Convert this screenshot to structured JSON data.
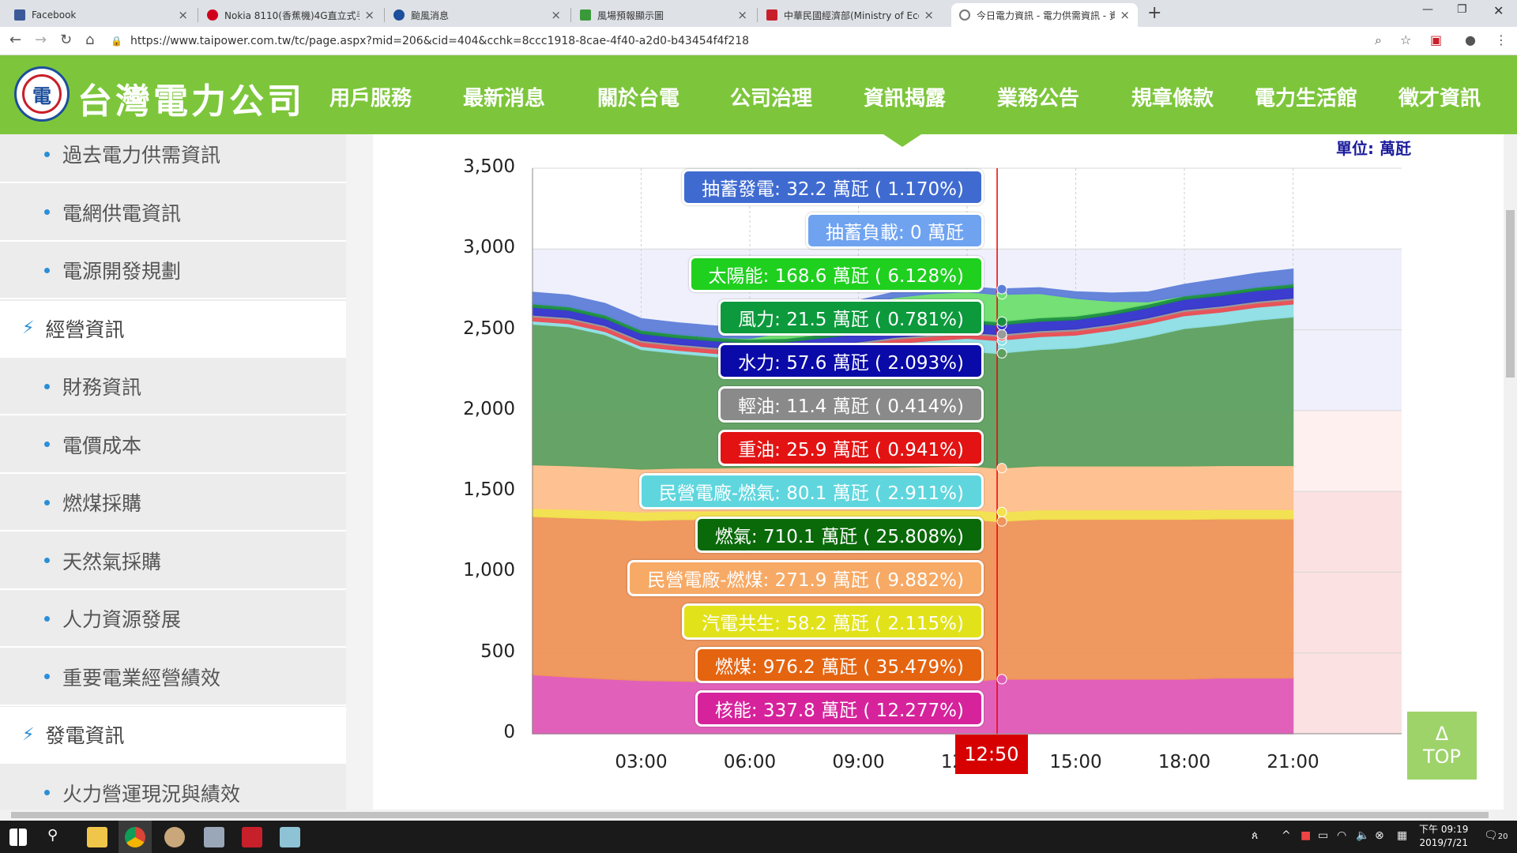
{
  "browser": {
    "tabs": [
      {
        "title": "Facebook",
        "favicon_color": "#3b5998"
      },
      {
        "title": "Nokia 8110(香蕉機)4G直立式手",
        "favicon_color": "#d0021b"
      },
      {
        "title": "颱風消息",
        "favicon_color": "#1c4f9c"
      },
      {
        "title": "風場預報顯示圖",
        "favicon_color": "#3a9a3a"
      },
      {
        "title": "中華民國經濟部(Ministry of Eco",
        "favicon_color": "#c8202a"
      },
      {
        "title": "今日電力資訊 - 電力供需資訊 - 資",
        "favicon_color": "#777777"
      }
    ],
    "url": "https://www.taipower.com.tw/tc/page.aspx?mid=206&cid=404&cchk=8ccc1918-8cae-4f40-a2d0-b43454f4f218"
  },
  "site": {
    "name": "台灣電力公司",
    "nav": [
      "用戶服務",
      "最新消息",
      "關於台電",
      "公司治理",
      "資訊揭露",
      "業務公告",
      "規章條款",
      "電力生活館",
      "徵才資訊"
    ],
    "brand_color": "#7dc63b"
  },
  "sidebar": {
    "items": [
      {
        "label": "過去電力供需資訊",
        "kind": "sub"
      },
      {
        "label": "電網供電資訊",
        "kind": "sub"
      },
      {
        "label": "電源開發規劃",
        "kind": "sub"
      },
      {
        "label": "經營資訊",
        "kind": "section"
      },
      {
        "label": "財務資訊",
        "kind": "sub"
      },
      {
        "label": "電價成本",
        "kind": "sub"
      },
      {
        "label": "燃煤採購",
        "kind": "sub"
      },
      {
        "label": "天然氣採購",
        "kind": "sub"
      },
      {
        "label": "人力資源發展",
        "kind": "sub"
      },
      {
        "label": "重要電業經營績效",
        "kind": "sub"
      },
      {
        "label": "發電資訊",
        "kind": "section"
      },
      {
        "label": "火力營運現況與績效",
        "kind": "sub"
      }
    ]
  },
  "chart": {
    "unit_label": "單位: 萬瓩",
    "cursor_label": "12:50",
    "top_button": {
      "arrow": "Δ",
      "label": "TOP"
    }
  },
  "chart_data": {
    "type": "area",
    "stacked": true,
    "unit": "萬瓩",
    "ylim": [
      0,
      3500
    ],
    "yticks": [
      0,
      500,
      1000,
      1500,
      2000,
      2500,
      3000,
      3500
    ],
    "yticks_text": [
      "0",
      "500",
      "1,000",
      "1,500",
      "2,000",
      "2,500",
      "3,000",
      "3,500"
    ],
    "xlim_hours": [
      0,
      24
    ],
    "xticks": [
      {
        "label": "03:00",
        "hour": 3
      },
      {
        "label": "06:00",
        "hour": 6
      },
      {
        "label": "09:00",
        "hour": 9
      },
      {
        "label": "12:00",
        "hour": 12
      },
      {
        "label": "15:00",
        "hour": 15
      },
      {
        "label": "18:00",
        "hour": 18
      },
      {
        "label": "21:00",
        "hour": 21
      }
    ],
    "cursor_hour": 12.83,
    "bands": [
      {
        "from": 0,
        "to": 1500,
        "color": "#fbe1e1"
      },
      {
        "from": 1500,
        "to": 2000,
        "color": "#fdf0ef"
      },
      {
        "from": 2000,
        "to": 3000,
        "color": "#eff0fb"
      }
    ],
    "hours": [
      0,
      1,
      2,
      3,
      4,
      5,
      6,
      7,
      8,
      9,
      10,
      11,
      12,
      12.83,
      14,
      15,
      16,
      17,
      18,
      19,
      20,
      21
    ],
    "series": [
      {
        "name": "核能",
        "color": "#e05bb8",
        "values": [
          365,
          352,
          340,
          330,
          326,
          322,
          320,
          320,
          320,
          320,
          320,
          320,
          320,
          337.8,
          338,
          338,
          338,
          338,
          338,
          345,
          345,
          345
        ]
      },
      {
        "name": "燃煤",
        "color": "#ef955a",
        "values": [
          980,
          985,
          990,
          990,
          1000,
          1005,
          1010,
          1010,
          1010,
          1010,
          1010,
          1010,
          1010,
          976.2,
          990,
          990,
          990,
          990,
          990,
          985,
          985,
          985
        ]
      },
      {
        "name": "汽電共生",
        "color": "#f2e34c",
        "values": [
          50,
          52,
          52,
          52,
          52,
          52,
          52,
          52,
          52,
          52,
          52,
          55,
          58,
          58.2,
          58,
          58,
          58,
          58,
          58,
          58,
          58,
          58
        ]
      },
      {
        "name": "民營電廠-燃煤",
        "color": "#ffc08e",
        "values": [
          270,
          270,
          268,
          266,
          266,
          266,
          266,
          266,
          266,
          266,
          266,
          268,
          270,
          271.9,
          272,
          272,
          272,
          272,
          272,
          272,
          272,
          272
        ]
      },
      {
        "name": "燃氣",
        "color": "#5da05f",
        "values": [
          870,
          860,
          820,
          740,
          710,
          690,
          670,
          660,
          660,
          670,
          690,
          700,
          710,
          710.1,
          720,
          730,
          760,
          800,
          850,
          870,
          900,
          920
        ]
      },
      {
        "name": "民營電廠-燃氣",
        "color": "#8fe0e6",
        "values": [
          20,
          20,
          20,
          20,
          20,
          20,
          25,
          40,
          60,
          70,
          78,
          80,
          80,
          80.1,
          80,
          80,
          80,
          80,
          80,
          80,
          80,
          80
        ]
      },
      {
        "name": "重油",
        "color": "#e84c52",
        "values": [
          26,
          26,
          26,
          26,
          26,
          26,
          26,
          26,
          26,
          26,
          26,
          26,
          26,
          25.9,
          26,
          26,
          26,
          26,
          26,
          26,
          26,
          26
        ]
      },
      {
        "name": "輕油",
        "color": "#9a9a9a",
        "values": [
          11,
          11,
          11,
          11,
          11,
          11,
          11,
          11,
          11,
          11,
          11,
          11,
          11,
          11.4,
          11,
          11,
          11,
          11,
          11,
          11,
          11,
          11
        ]
      },
      {
        "name": "水力",
        "color": "#3333cc",
        "values": [
          48,
          46,
          44,
          42,
          40,
          40,
          40,
          40,
          45,
          50,
          55,
          57,
          57,
          57.6,
          58,
          58,
          60,
          62,
          64,
          66,
          66,
          66
        ]
      },
      {
        "name": "風力",
        "color": "#1a8f3f",
        "values": [
          22,
          22,
          22,
          22,
          22,
          22,
          22,
          22,
          22,
          22,
          22,
          22,
          22,
          21.5,
          22,
          22,
          22,
          22,
          22,
          22,
          22,
          22
        ]
      },
      {
        "name": "太陽能",
        "color": "#6fe06f",
        "values": [
          0,
          0,
          0,
          0,
          0,
          0,
          5,
          40,
          100,
          150,
          170,
          175,
          172,
          168.6,
          150,
          110,
          60,
          15,
          0,
          0,
          0,
          0
        ]
      },
      {
        "name": "抽蓄負載",
        "color": "#7aa9ee",
        "values": [
          0,
          0,
          0,
          0,
          0,
          0,
          0,
          0,
          0,
          0,
          0,
          0,
          0,
          0,
          0,
          0,
          0,
          0,
          0,
          0,
          0,
          0
        ]
      },
      {
        "name": "抽蓄發電",
        "color": "#5e7fd9",
        "values": [
          70,
          70,
          70,
          70,
          70,
          70,
          60,
          50,
          40,
          35,
          33,
          33,
          32,
          32.2,
          35,
          40,
          50,
          60,
          70,
          80,
          85,
          90
        ]
      }
    ],
    "tooltip": [
      {
        "name": "抽蓄發電",
        "text": "抽蓄發電: 32.2 萬瓩 ( 1.170%)",
        "bg": "#3f6bd1"
      },
      {
        "name": "抽蓄負載",
        "text": "抽蓄負載: 0 萬瓩",
        "bg": "#6fa3f0"
      },
      {
        "name": "太陽能",
        "text": "太陽能: 168.6 萬瓩 ( 6.128%)",
        "bg": "#1fd01f"
      },
      {
        "name": "風力",
        "text": "風力: 21.5 萬瓩 ( 0.781%)",
        "bg": "#0c9a3c"
      },
      {
        "name": "水力",
        "text": "水力: 57.6 萬瓩 ( 2.093%)",
        "bg": "#0a0aa8"
      },
      {
        "name": "輕油",
        "text": "輕油: 11.4 萬瓩 ( 0.414%)",
        "bg": "#8a8a8a"
      },
      {
        "name": "重油",
        "text": "重油: 25.9 萬瓩 ( 0.941%)",
        "bg": "#e31313"
      },
      {
        "name": "民營電廠-燃氣",
        "text": "民營電廠-燃氣: 80.1 萬瓩 ( 2.911%)",
        "bg": "#5fd6de"
      },
      {
        "name": "燃氣",
        "text": "燃氣: 710.1 萬瓩 ( 25.808%)",
        "bg": "#0a6a0a"
      },
      {
        "name": "民營電廠-燃煤",
        "text": "民營電廠-燃煤: 271.9 萬瓩 ( 9.882%)",
        "bg": "#f7aa66"
      },
      {
        "name": "汽電共生",
        "text": "汽電共生: 58.2 萬瓩 ( 2.115%)",
        "bg": "#e2e21a"
      },
      {
        "name": "燃煤",
        "text": "燃煤: 976.2 萬瓩 ( 35.479%)",
        "bg": "#e56410"
      },
      {
        "name": "核能",
        "text": "核能: 337.8 萬瓩 ( 12.277%)",
        "bg": "#d6239c"
      }
    ]
  },
  "taskbar": {
    "time": "下午 09:19",
    "date": "2019/7/21",
    "notifications": "20"
  }
}
